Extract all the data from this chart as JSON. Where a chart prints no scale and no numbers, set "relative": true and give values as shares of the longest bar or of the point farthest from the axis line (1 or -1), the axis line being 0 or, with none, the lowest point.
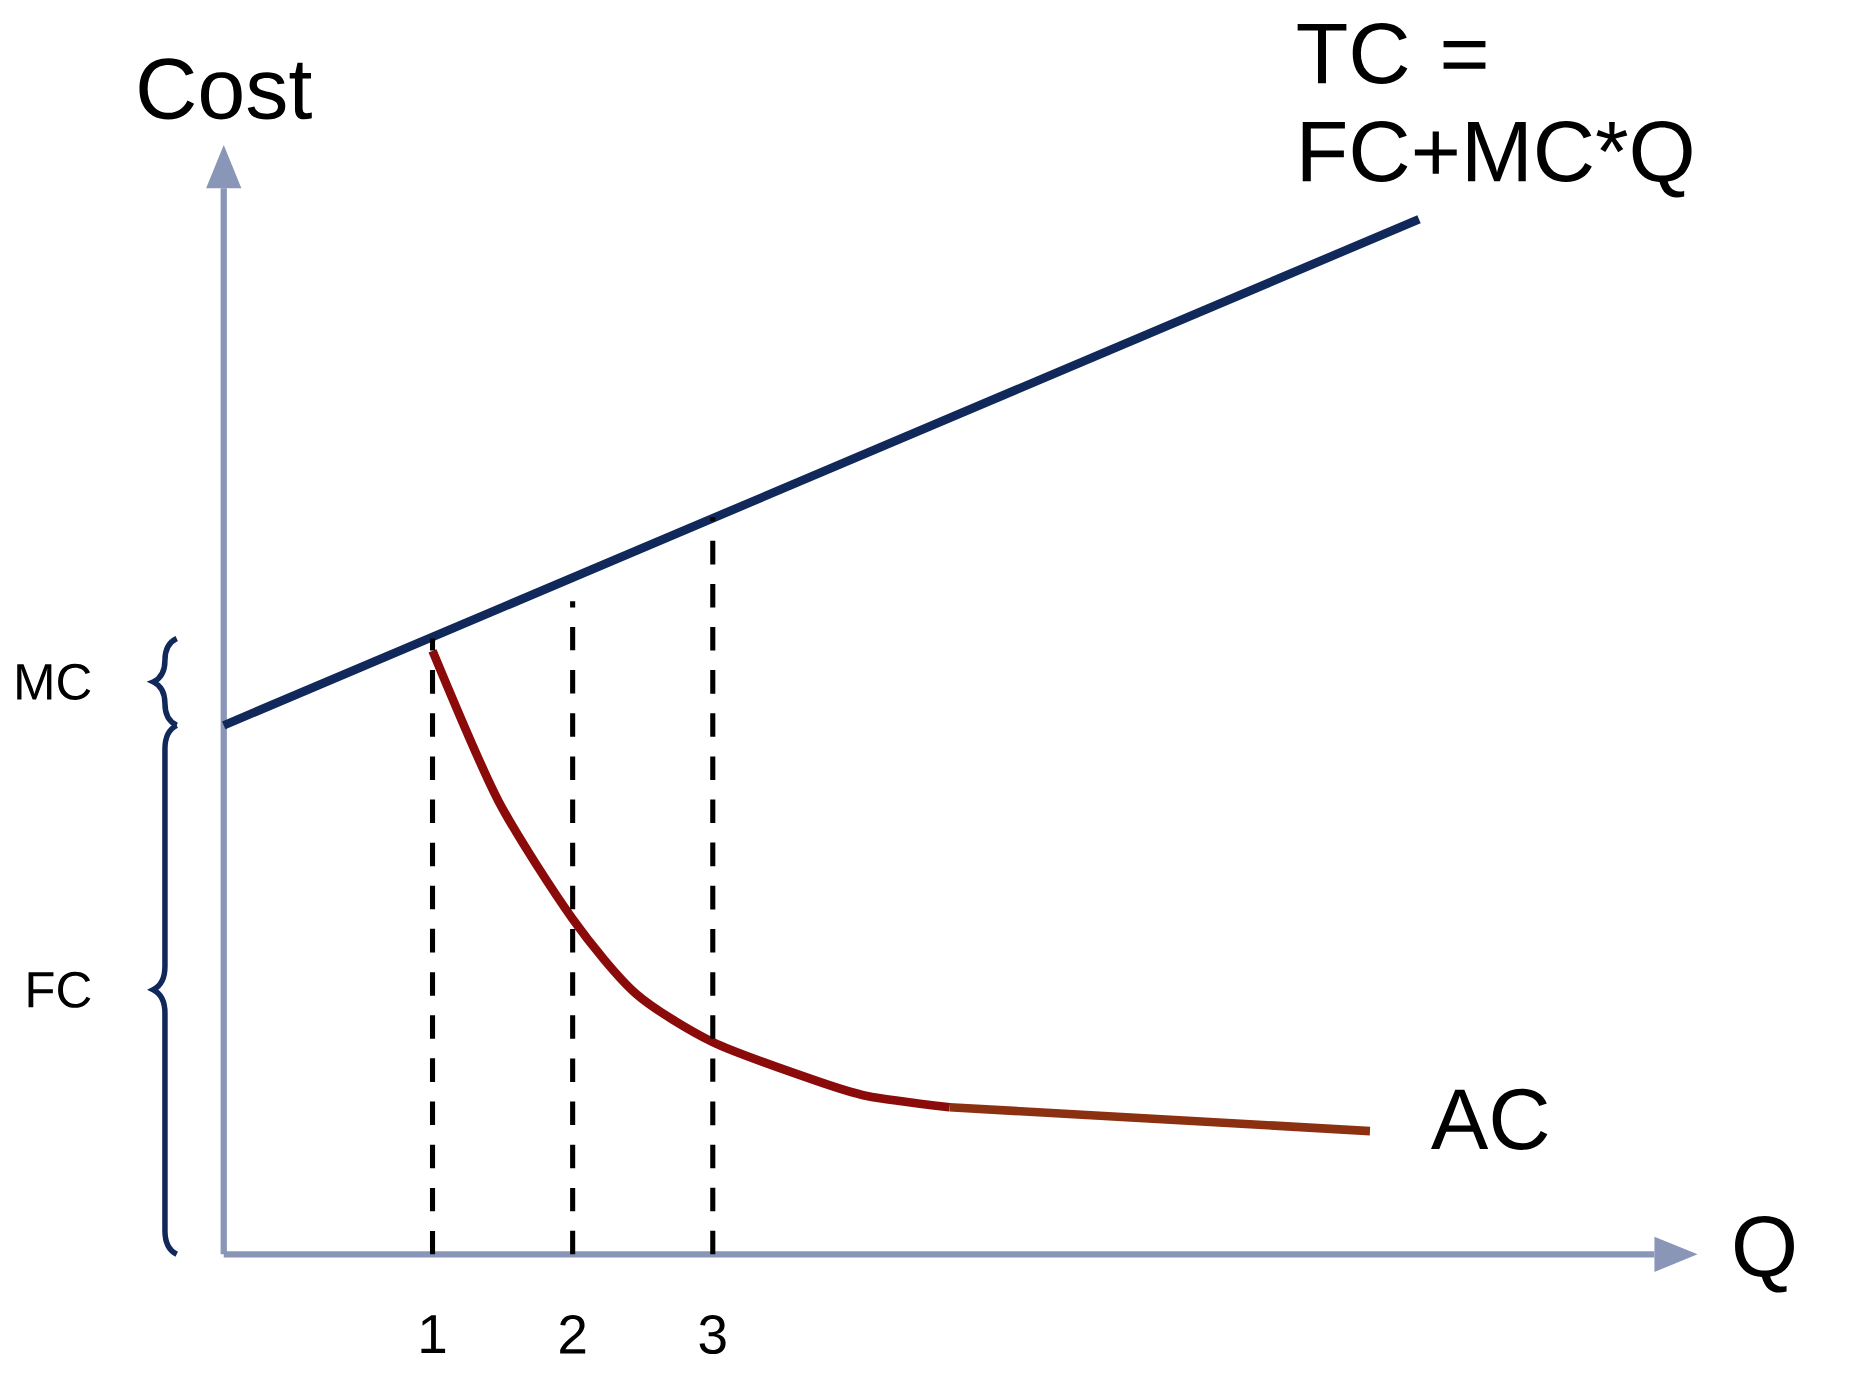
{
  "chart_data": {
    "type": "line",
    "relative": true,
    "ylabel": "Cost",
    "xlabel": "Q",
    "xlim": [
      -0.49,
      9.72
    ],
    "xticks": [
      1,
      2,
      3
    ],
    "tick_labels": "x",
    "series": [
      {
        "name": "TC = FC+MC*Q",
        "color": "#10285a",
        "x": [
          -0.49,
          8.04
        ],
        "values": [
          0.511,
          1
        ]
      },
      {
        "color": "#8b0a0a",
        "x": [
          1,
          1.47,
          2,
          2.45,
          3,
          3.71,
          4.1,
          4.69
        ],
        "values": [
          0.583,
          0.438,
          0.324,
          0.252,
          0.205,
          0.169,
          0.153,
          0.142
        ]
      },
      {
        "name": "AC",
        "color": "#8b3010",
        "x": [
          4.69,
          7.69
        ],
        "values": [
          0.142,
          0.119
        ]
      },
      {
        "color": "#000000",
        "line_style": "dashed",
        "x": [
          1,
          1
        ],
        "values": [
          0,
          0.595
        ]
      },
      {
        "color": "#000000",
        "line_style": "dashed",
        "x": [
          2,
          2
        ],
        "values": [
          0,
          0.631
        ]
      },
      {
        "color": "#000000",
        "line_style": "dashed",
        "x": [
          3,
          3
        ],
        "values": [
          0,
          0.712
        ]
      }
    ],
    "annotations": [
      "MC",
      "FC"
    ]
  }
}
